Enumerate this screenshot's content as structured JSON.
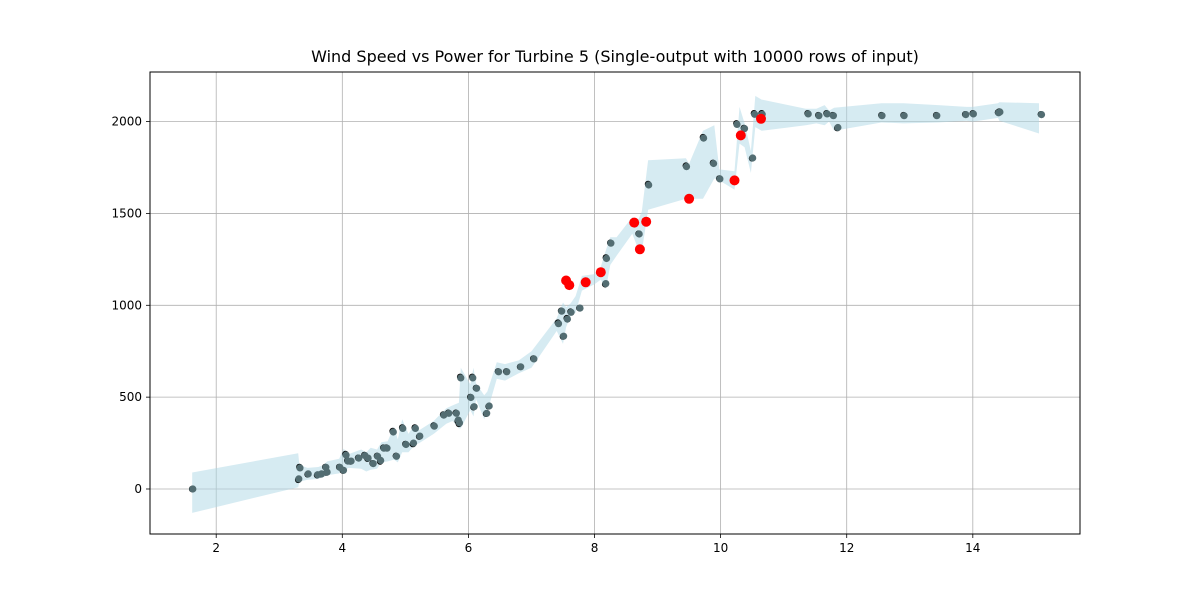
{
  "chart_data": {
    "type": "scatter",
    "title": "Wind Speed vs Power for Turbine 5 (Single-output with 10000 rows of input)",
    "xlabel": "",
    "ylabel": "",
    "xlim": [
      0.95,
      15.7
    ],
    "ylim": [
      -245,
      2270
    ],
    "xticks": [
      2,
      4,
      6,
      8,
      10,
      12,
      14
    ],
    "yticks": [
      0,
      500,
      1000,
      1500,
      2000
    ],
    "grid": true,
    "band": {
      "color": "#add8e6",
      "x": [
        1.62,
        3.3,
        3.32,
        3.45,
        3.62,
        3.7,
        3.76,
        3.95,
        4.02,
        4.1,
        4.3,
        4.38,
        4.45,
        4.55,
        4.62,
        4.72,
        4.82,
        4.88,
        4.95,
        5.05,
        5.15,
        5.22,
        5.45,
        5.65,
        5.75,
        5.85,
        5.88,
        6.03,
        6.08,
        6.12,
        6.25,
        6.3,
        6.45,
        6.58,
        6.8,
        7.0,
        7.4,
        7.5,
        7.55,
        7.62,
        7.7,
        7.8,
        8.0,
        8.1,
        8.18,
        8.25,
        8.35,
        8.6,
        8.7,
        8.75,
        8.85,
        9.45,
        9.5,
        9.72,
        9.9,
        9.98,
        10.22,
        10.3,
        10.38,
        10.48,
        10.55,
        10.65,
        11.35,
        11.52,
        11.65,
        11.72,
        11.8,
        12.55,
        12.9,
        13.45,
        13.9,
        14.0,
        14.4,
        14.42,
        15.05
      ],
      "upper": [
        90,
        195,
        130,
        115,
        120,
        130,
        150,
        165,
        220,
        190,
        215,
        200,
        225,
        215,
        255,
        260,
        340,
        270,
        380,
        300,
        355,
        320,
        370,
        440,
        455,
        470,
        660,
        570,
        660,
        575,
        510,
        530,
        690,
        680,
        700,
        750,
        930,
        1015,
        990,
        1010,
        1050,
        1160,
        1170,
        1210,
        1300,
        1370,
        1370,
        1480,
        1470,
        1510,
        1790,
        1800,
        1770,
        1950,
        1980,
        1740,
        1730,
        2080,
        1990,
        1840,
        2140,
        2120,
        2070,
        2070,
        2090,
        2060,
        2075,
        2100,
        2100,
        2090,
        2080,
        2080,
        2100,
        2105,
        2100
      ],
      "lower": [
        -130,
        10,
        40,
        50,
        55,
        65,
        75,
        85,
        100,
        115,
        110,
        95,
        105,
        110,
        145,
        150,
        160,
        145,
        200,
        200,
        240,
        250,
        300,
        355,
        370,
        330,
        330,
        430,
        395,
        490,
        380,
        420,
        600,
        590,
        630,
        660,
        860,
        790,
        880,
        940,
        960,
        1080,
        1115,
        1140,
        1090,
        1220,
        1270,
        1390,
        1300,
        1290,
        1520,
        1580,
        1580,
        1580,
        1690,
        1680,
        1630,
        1880,
        1860,
        1720,
        1970,
        1950,
        1980,
        1990,
        1980,
        2000,
        1950,
        1995,
        1990,
        1995,
        2005,
        2000,
        2020,
        2005,
        1935
      ]
    },
    "series": [
      {
        "role": "actual",
        "color": "#000000",
        "x": [
          1.62,
          3.3,
          3.32,
          3.45,
          3.6,
          3.66,
          3.73,
          3.75,
          3.95,
          4.01,
          4.05,
          4.08,
          4.13,
          4.25,
          4.35,
          4.4,
          4.48,
          4.55,
          4.6,
          4.65,
          4.7,
          4.8,
          4.85,
          4.95,
          5.0,
          5.12,
          5.15,
          5.22,
          5.45,
          5.6,
          5.68,
          5.8,
          5.83,
          5.85,
          5.87,
          6.03,
          6.06,
          6.08,
          6.12,
          6.28,
          6.32,
          6.47,
          6.6,
          6.82,
          7.03,
          7.42,
          7.47,
          7.5,
          7.56,
          7.62,
          7.76,
          8.17,
          8.18,
          8.25,
          8.7,
          8.85,
          9.45,
          9.72,
          9.88,
          9.98,
          10.25,
          10.37,
          10.5,
          10.53,
          10.65,
          11.38,
          11.55,
          11.68,
          11.78,
          11.85,
          12.55,
          12.9,
          13.42,
          13.88,
          14.0,
          14.4,
          14.42,
          15.08
        ],
        "y": [
          0,
          50,
          120,
          80,
          75,
          80,
          120,
          90,
          120,
          100,
          190,
          155,
          150,
          170,
          185,
          165,
          140,
          180,
          150,
          225,
          225,
          315,
          180,
          335,
          245,
          245,
          335,
          285,
          345,
          405,
          415,
          415,
          370,
          355,
          610,
          500,
          610,
          445,
          550,
          410,
          450,
          640,
          640,
          665,
          710,
          905,
          970,
          830,
          930,
          965,
          985,
          1115,
          1260,
          1340,
          1390,
          1660,
          1760,
          1915,
          1775,
          1690,
          1990,
          1965,
          1800,
          2045,
          2045,
          2045,
          2035,
          2045,
          2035,
          1965,
          2035,
          2035,
          2035,
          2040,
          2045,
          2050,
          2055,
          2040
        ]
      },
      {
        "role": "predicted",
        "color": "#536d72",
        "x": [
          1.62,
          3.3,
          3.32,
          3.45,
          3.6,
          3.66,
          3.73,
          3.75,
          3.95,
          4.01,
          4.05,
          4.08,
          4.13,
          4.25,
          4.35,
          4.4,
          4.48,
          4.55,
          4.6,
          4.65,
          4.7,
          4.8,
          4.85,
          4.95,
          5.0,
          5.12,
          5.15,
          5.22,
          5.45,
          5.6,
          5.68,
          5.8,
          5.83,
          5.85,
          5.87,
          6.03,
          6.06,
          6.08,
          6.12,
          6.28,
          6.32,
          6.47,
          6.6,
          6.82,
          7.03,
          7.42,
          7.47,
          7.5,
          7.56,
          7.62,
          7.76,
          8.17,
          8.18,
          8.25,
          8.7,
          8.85,
          9.45,
          9.72,
          9.88,
          9.98,
          10.25,
          10.37,
          10.5,
          10.53,
          10.65,
          11.38,
          11.55,
          11.68,
          11.78,
          11.85,
          12.55,
          12.9,
          13.42,
          13.88,
          14.0,
          14.4,
          14.42,
          15.08
        ],
        "y": [
          0,
          55,
          115,
          82,
          78,
          82,
          118,
          92,
          118,
          102,
          185,
          152,
          152,
          168,
          182,
          168,
          138,
          178,
          155,
          222,
          222,
          310,
          178,
          330,
          242,
          250,
          330,
          288,
          342,
          402,
          412,
          412,
          375,
          360,
          605,
          498,
          605,
          448,
          548,
          412,
          452,
          638,
          638,
          665,
          708,
          900,
          968,
          832,
          925,
          962,
          985,
          1118,
          1255,
          1338,
          1388,
          1655,
          1755,
          1910,
          1772,
          1688,
          1985,
          1962,
          1802,
          2040,
          2040,
          2042,
          2032,
          2042,
          2032,
          1968,
          2032,
          2032,
          2032,
          2038,
          2042,
          2048,
          2052,
          2038
        ]
      },
      {
        "role": "highlight",
        "color": "#ff0000",
        "x": [
          7.55,
          7.6,
          7.86,
          8.1,
          8.63,
          8.72,
          8.82,
          9.5,
          10.22,
          10.32,
          10.64
        ],
        "y": [
          1135,
          1110,
          1125,
          1180,
          1450,
          1305,
          1455,
          1580,
          1680,
          1925,
          2015
        ]
      }
    ]
  }
}
